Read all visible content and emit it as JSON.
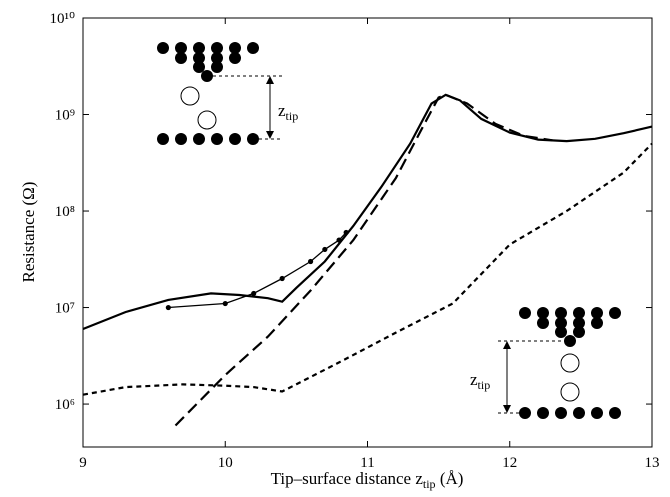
{
  "chart_data": {
    "type": "line",
    "log_y": true,
    "ylabel": "Resistance (Ω)",
    "xlabel": {
      "text": "Tip–surface distance z",
      "sub": "tip",
      "end": " (Å)"
    },
    "insets": [
      {
        "label": "z",
        "sub": "tip"
      },
      {
        "label": "z",
        "sub": "tip"
      }
    ],
    "xlim": [
      9,
      13
    ],
    "xticks": [
      9,
      10,
      11,
      12,
      13
    ],
    "ylim": [
      359000,
      10000000000
    ],
    "yticks": [
      {
        "value": 1000000,
        "label": "10⁶"
      },
      {
        "value": 10000000,
        "label": "10⁷"
      },
      {
        "value": 100000000,
        "label": "10⁸"
      },
      {
        "value": 1000000000,
        "label": "10⁹"
      },
      {
        "value": 10000000000,
        "label": "10¹⁰"
      }
    ],
    "series": [
      {
        "color": "#000000",
        "dash": "solid",
        "markers": false,
        "x": [
          9,
          9.3,
          9.6,
          9.9,
          10.1,
          10.3,
          10.4,
          10.5,
          10.7,
          10.9,
          11.1,
          11.3,
          11.45,
          11.55,
          11.65,
          11.8,
          12,
          12.2,
          12.4,
          12.6,
          12.8,
          13
        ],
        "values": [
          6000000,
          9000000,
          12000000,
          14000000,
          13500000,
          12500000,
          11500000,
          16000000,
          30000000,
          70000000,
          180000000,
          500000000,
          1300000000,
          1600000000,
          1400000000,
          900000000,
          650000000,
          550000000,
          530000000,
          560000000,
          640000000,
          750000000
        ]
      },
      {
        "color": "#000000",
        "dash": "long",
        "markers": false,
        "x": [
          9.65,
          10,
          10.3,
          10.6,
          10.9,
          11.2,
          11.4,
          11.5,
          11.55,
          11.7,
          11.9,
          12.1,
          12.3
        ],
        "values": [
          600000,
          2000000,
          5000000,
          15000000,
          50000000,
          220000000,
          800000000,
          1500000000,
          1600000000,
          1300000000,
          800000000,
          600000000,
          540000000
        ]
      },
      {
        "color": "#000000",
        "dash": "short",
        "markers": false,
        "x": [
          9,
          9.3,
          9.7,
          10,
          10.2,
          10.4,
          10.8,
          11.2,
          11.6,
          12,
          12.4,
          12.8,
          13
        ],
        "values": [
          1250000,
          1500000,
          1600000,
          1550000,
          1500000,
          1350000,
          2700000,
          5500000,
          11000000,
          45000000,
          100000000,
          250000000,
          500000000
        ]
      },
      {
        "color": "#000000",
        "dash": "solid",
        "markers": true,
        "x": [
          9.6,
          10,
          10.2,
          10.4,
          10.6,
          10.7,
          10.8,
          10.85
        ],
        "values": [
          10000000,
          11000000,
          14000000,
          20000000,
          30000000,
          40000000,
          50000000,
          60000000
        ]
      }
    ]
  }
}
